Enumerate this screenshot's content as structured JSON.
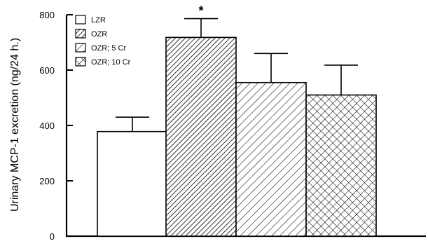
{
  "chart_data": {
    "type": "bar",
    "title": "",
    "xlabel": "",
    "ylabel": "Urinary MCP-1 excretion (ng/24 h.)",
    "ylim": [
      0,
      800
    ],
    "yticks": [
      0,
      200,
      400,
      600,
      800
    ],
    "grid": false,
    "legend_position": "top-left",
    "series": [
      {
        "name": "LZR",
        "value": 378,
        "error": 52,
        "pattern": "none",
        "significance": ""
      },
      {
        "name": "OZR",
        "value": 718,
        "error": 68,
        "pattern": "dense-diagonal",
        "significance": "*"
      },
      {
        "name": "OZR; 5 Cr",
        "value": 555,
        "error": 105,
        "pattern": "diagonal",
        "significance": ""
      },
      {
        "name": "OZR; 10 Cr",
        "value": 510,
        "error": 108,
        "pattern": "crosshatch",
        "significance": ""
      }
    ],
    "colors": {
      "bar_fill": "#ffffff",
      "stroke": "#000000"
    }
  }
}
